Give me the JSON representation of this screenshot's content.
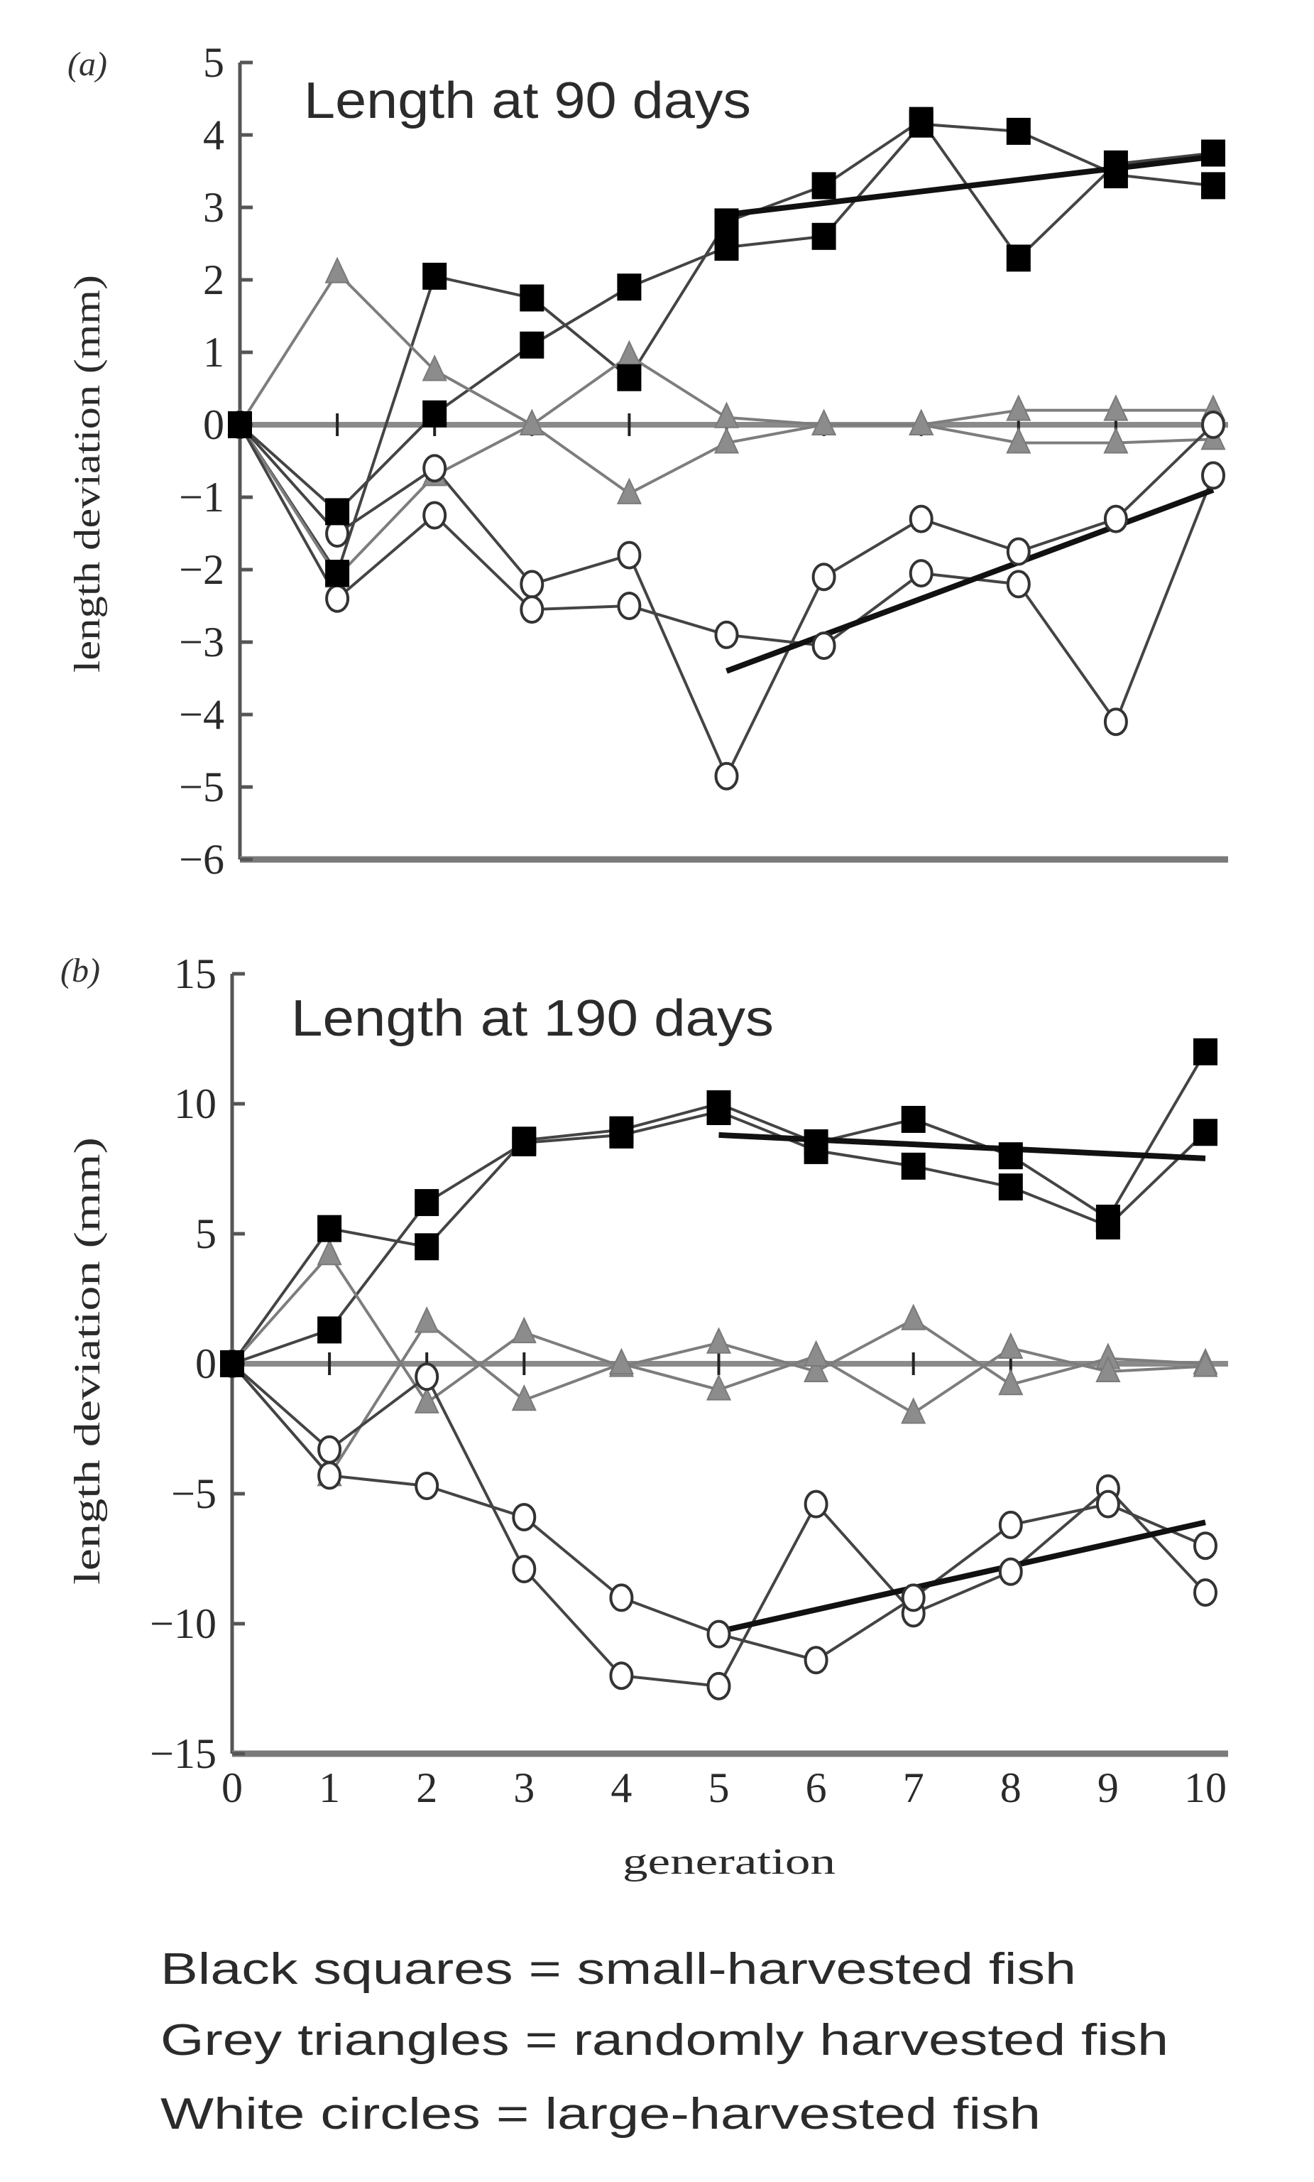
{
  "legend": {
    "lines": [
      "Black squares = small-harvested fish",
      "Grey triangles = randomly harvested fish",
      "White circles = large-harvested fish"
    ]
  },
  "colors": {
    "square": "#000000",
    "triangle": "#8c8c8c",
    "circle_fill": "#ffffff",
    "line": "#444444",
    "trend": "#111111",
    "axis": "#555555"
  },
  "chart_data": [
    {
      "type": "line",
      "panel_label": "(a)",
      "title": "Length at 90 days",
      "xlabel": "generation",
      "ylabel": "length deviation (mm)",
      "x": [
        0,
        1,
        2,
        3,
        4,
        5,
        6,
        7,
        8,
        9,
        10
      ],
      "xticks": [
        "0",
        "1",
        "2",
        "3",
        "4",
        "5",
        "6",
        "7",
        "8",
        "9",
        "10"
      ],
      "show_xtick_labels": false,
      "ylim": [
        -6,
        5
      ],
      "yticks": [
        5,
        4,
        3,
        2,
        1,
        0,
        -1,
        -2,
        -3,
        -4,
        -5,
        -6
      ],
      "ytick_labels": [
        "5",
        "4",
        "3",
        "2",
        "1",
        "0",
        "−1",
        "−2",
        "−3",
        "−4",
        "−5",
        "−6"
      ],
      "series": [
        {
          "name": "small-harvested 1",
          "marker": "square",
          "values": [
            0,
            -2.05,
            2.05,
            1.75,
            0.65,
            2.8,
            3.3,
            4.2,
            2.3,
            3.6,
            3.75
          ]
        },
        {
          "name": "small-harvested 2",
          "marker": "square",
          "values": [
            0,
            -1.2,
            0.15,
            1.1,
            1.9,
            2.45,
            2.6,
            4.15,
            4.05,
            3.45,
            3.3
          ]
        },
        {
          "name": "randomly harvested 1",
          "marker": "triangle",
          "values": [
            0,
            2.1,
            0.75,
            0,
            -0.95,
            -0.25,
            0,
            0,
            0.2,
            0.2,
            0.2
          ]
        },
        {
          "name": "randomly harvested 2",
          "marker": "triangle",
          "values": [
            0,
            -2.1,
            -0.7,
            0,
            0.95,
            0.1,
            0,
            0,
            -0.25,
            -0.25,
            -0.2
          ]
        },
        {
          "name": "large-harvested 1",
          "marker": "circle",
          "values": [
            0,
            -1.5,
            -0.6,
            -2.2,
            -1.8,
            -4.85,
            -2.1,
            -1.3,
            -1.75,
            -1.3,
            0
          ]
        },
        {
          "name": "large-harvested 2",
          "marker": "circle",
          "values": [
            0,
            -2.4,
            -1.25,
            -2.55,
            -2.5,
            -2.9,
            -3.05,
            -2.05,
            -2.2,
            -4.1,
            -0.7
          ]
        }
      ],
      "trend_lines": [
        {
          "name": "small-harvested trend",
          "x": [
            5,
            10
          ],
          "y": [
            2.9,
            3.7
          ]
        },
        {
          "name": "large-harvested trend",
          "x": [
            5,
            10
          ],
          "y": [
            -3.4,
            -0.9
          ]
        }
      ]
    },
    {
      "type": "line",
      "panel_label": "(b)",
      "title": "Length at 190 days",
      "xlabel": "generation",
      "ylabel": "length deviation (mm)",
      "x": [
        0,
        1,
        2,
        3,
        4,
        5,
        6,
        7,
        8,
        9,
        10
      ],
      "xticks": [
        "0",
        "1",
        "2",
        "3",
        "4",
        "5",
        "6",
        "7",
        "8",
        "9",
        "10"
      ],
      "show_xtick_labels": true,
      "ylim": [
        -15,
        15
      ],
      "yticks": [
        15,
        10,
        5,
        0,
        -5,
        -10,
        -15
      ],
      "ytick_labels": [
        "15",
        "10",
        "5",
        "0",
        "−5",
        "−10",
        "−15"
      ],
      "series": [
        {
          "name": "small-harvested 1",
          "marker": "square",
          "values": [
            0,
            5.2,
            4.5,
            8.6,
            9.0,
            10.0,
            8.5,
            9.4,
            8.0,
            5.6,
            12.0
          ]
        },
        {
          "name": "small-harvested 2",
          "marker": "square",
          "values": [
            0,
            1.3,
            6.2,
            8.5,
            8.8,
            9.7,
            8.2,
            7.6,
            6.8,
            5.3,
            8.9
          ]
        },
        {
          "name": "randomly harvested 1",
          "marker": "triangle",
          "values": [
            0,
            4.2,
            -1.5,
            1.2,
            -0.1,
            0.8,
            -0.3,
            1.7,
            -0.8,
            0.2,
            0
          ]
        },
        {
          "name": "randomly harvested 2",
          "marker": "triangle",
          "values": [
            0,
            -4.3,
            1.6,
            -1.4,
            0,
            -1.0,
            0.3,
            -1.9,
            0.6,
            -0.3,
            -0.1
          ]
        },
        {
          "name": "large-harvested 1",
          "marker": "circle",
          "values": [
            0,
            -3.3,
            -0.5,
            -7.9,
            -12.0,
            -12.4,
            -5.4,
            -9.6,
            -8.0,
            -4.8,
            -8.8
          ]
        },
        {
          "name": "large-harvested 2",
          "marker": "circle",
          "values": [
            0,
            -4.3,
            -4.7,
            -5.9,
            -9.0,
            -10.4,
            -11.4,
            -9.0,
            -6.2,
            -5.4,
            -7.0
          ]
        }
      ],
      "trend_lines": [
        {
          "name": "small-harvested trend",
          "x": [
            5,
            10
          ],
          "y": [
            8.8,
            7.9
          ]
        },
        {
          "name": "large-harvested trend",
          "x": [
            5,
            10
          ],
          "y": [
            -10.3,
            -6.1
          ]
        }
      ]
    }
  ]
}
